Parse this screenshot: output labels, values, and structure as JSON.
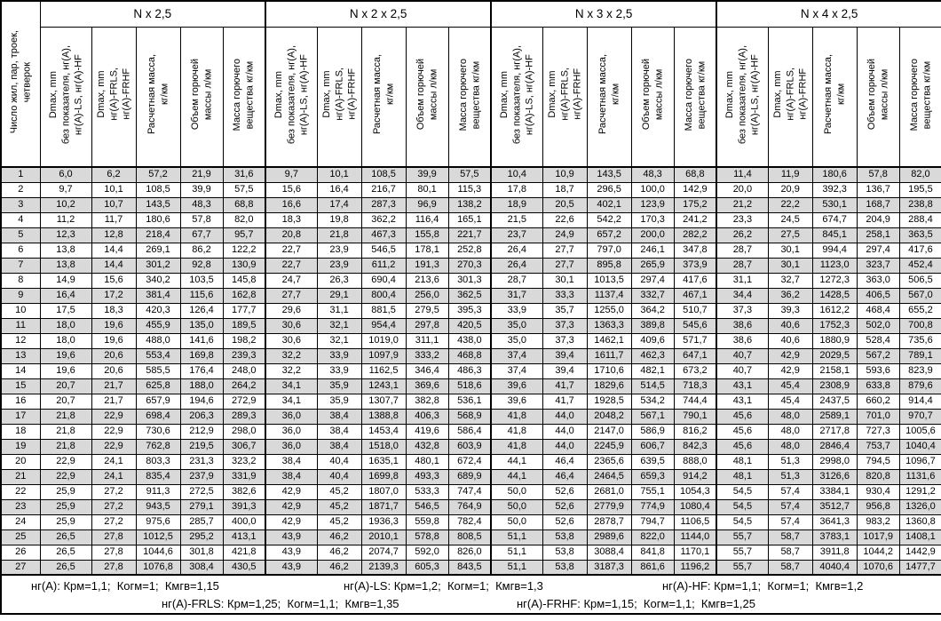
{
  "corner_header": "Число жил, пар, троек,\nчетверок",
  "groups": [
    {
      "title": "N x 2,5"
    },
    {
      "title": "N x 2 x 2,5"
    },
    {
      "title": "N x 3 x 2,5"
    },
    {
      "title": "N x 4 x 2,5"
    }
  ],
  "column_headers": [
    {
      "id": "dmax-base",
      "lines": [
        "Dmax, mm",
        "без показателя, нг(A),",
        "нг(A)-LS, нг(A)-HF"
      ]
    },
    {
      "id": "dmax-fr",
      "lines": [
        "Dmax, mm",
        "нг(A)-FRLS,",
        "нг(A)-FRHF"
      ]
    },
    {
      "id": "calc-mass",
      "lines": [
        "Расчетная масса,",
        "кг/км"
      ]
    },
    {
      "id": "combustible-volume",
      "lines": [
        "Объем горючей",
        "массы л/км"
      ]
    },
    {
      "id": "combustible-mass",
      "lines": [
        "Масса горючего",
        "вещества кг/км"
      ]
    }
  ],
  "colors": {
    "stripe": "#d9d9d9",
    "border": "#000000",
    "background": "#ffffff"
  },
  "rows": [
    {
      "num": "1",
      "cells": [
        "6,0",
        "6,2",
        "57,2",
        "21,9",
        "31,6",
        "9,7",
        "10,1",
        "108,5",
        "39,9",
        "57,5",
        "10,4",
        "10,9",
        "143,5",
        "48,3",
        "68,8",
        "11,4",
        "11,9",
        "180,6",
        "57,8",
        "82,0"
      ]
    },
    {
      "num": "2",
      "cells": [
        "9,7",
        "10,1",
        "108,5",
        "39,9",
        "57,5",
        "15,6",
        "16,4",
        "216,7",
        "80,1",
        "115,3",
        "17,8",
        "18,7",
        "296,5",
        "100,0",
        "142,9",
        "20,0",
        "20,9",
        "392,3",
        "136,7",
        "195,5"
      ]
    },
    {
      "num": "3",
      "cells": [
        "10,2",
        "10,7",
        "143,5",
        "48,3",
        "68,8",
        "16,6",
        "17,4",
        "287,3",
        "96,9",
        "138,2",
        "18,9",
        "20,5",
        "402,1",
        "123,9",
        "175,2",
        "21,2",
        "22,2",
        "530,1",
        "168,7",
        "238,8"
      ]
    },
    {
      "num": "4",
      "cells": [
        "11,2",
        "11,7",
        "180,6",
        "57,8",
        "82,0",
        "18,3",
        "19,8",
        "362,2",
        "116,4",
        "165,1",
        "21,5",
        "22,6",
        "542,2",
        "170,3",
        "241,2",
        "23,3",
        "24,5",
        "674,7",
        "204,9",
        "288,4"
      ]
    },
    {
      "num": "5",
      "cells": [
        "12,3",
        "12,8",
        "218,4",
        "67,7",
        "95,7",
        "20,8",
        "21,8",
        "467,3",
        "155,8",
        "221,7",
        "23,7",
        "24,9",
        "657,2",
        "200,0",
        "282,2",
        "26,2",
        "27,5",
        "845,1",
        "258,1",
        "363,5"
      ]
    },
    {
      "num": "6",
      "cells": [
        "13,8",
        "14,4",
        "269,1",
        "86,2",
        "122,2",
        "22,7",
        "23,9",
        "546,5",
        "178,1",
        "252,8",
        "26,4",
        "27,7",
        "797,0",
        "246,1",
        "347,8",
        "28,7",
        "30,1",
        "994,4",
        "297,4",
        "417,6"
      ]
    },
    {
      "num": "7",
      "cells": [
        "13,8",
        "14,4",
        "301,2",
        "92,8",
        "130,9",
        "22,7",
        "23,9",
        "611,2",
        "191,3",
        "270,3",
        "26,4",
        "27,7",
        "895,8",
        "265,9",
        "373,9",
        "28,7",
        "30,1",
        "1123,0",
        "323,7",
        "452,4"
      ]
    },
    {
      "num": "8",
      "cells": [
        "14,9",
        "15,6",
        "340,2",
        "103,5",
        "145,8",
        "24,7",
        "26,3",
        "690,4",
        "213,6",
        "301,3",
        "28,7",
        "30,1",
        "1013,5",
        "297,4",
        "417,6",
        "31,1",
        "32,7",
        "1272,3",
        "363,0",
        "506,5"
      ]
    },
    {
      "num": "9",
      "cells": [
        "16,4",
        "17,2",
        "381,4",
        "115,6",
        "162,8",
        "27,7",
        "29,1",
        "800,4",
        "256,0",
        "362,5",
        "31,7",
        "33,3",
        "1137,4",
        "332,7",
        "467,1",
        "34,4",
        "36,2",
        "1428,5",
        "406,5",
        "567,0"
      ]
    },
    {
      "num": "10",
      "cells": [
        "17,5",
        "18,3",
        "420,3",
        "126,4",
        "177,7",
        "29,6",
        "31,1",
        "881,5",
        "279,5",
        "395,3",
        "33,9",
        "35,7",
        "1255,0",
        "364,2",
        "510,7",
        "37,3",
        "39,3",
        "1612,2",
        "468,4",
        "655,2"
      ]
    },
    {
      "num": "11",
      "cells": [
        "18,0",
        "19,6",
        "455,9",
        "135,0",
        "189,5",
        "30,6",
        "32,1",
        "954,4",
        "297,8",
        "420,5",
        "35,0",
        "37,3",
        "1363,3",
        "389,8",
        "545,6",
        "38,6",
        "40,6",
        "1752,3",
        "502,0",
        "700,8"
      ]
    },
    {
      "num": "12",
      "cells": [
        "18,0",
        "19,6",
        "488,0",
        "141,6",
        "198,2",
        "30,6",
        "32,1",
        "1019,0",
        "311,1",
        "438,0",
        "35,0",
        "37,3",
        "1462,1",
        "409,6",
        "571,7",
        "38,6",
        "40,6",
        "1880,9",
        "528,4",
        "735,6"
      ]
    },
    {
      "num": "13",
      "cells": [
        "19,6",
        "20,6",
        "553,4",
        "169,8",
        "239,3",
        "32,2",
        "33,9",
        "1097,9",
        "333,2",
        "468,8",
        "37,4",
        "39,4",
        "1611,7",
        "462,3",
        "647,1",
        "40,7",
        "42,9",
        "2029,5",
        "567,2",
        "789,1"
      ]
    },
    {
      "num": "14",
      "cells": [
        "19,6",
        "20,6",
        "585,5",
        "176,4",
        "248,0",
        "32,2",
        "33,9",
        "1162,5",
        "346,4",
        "486,3",
        "37,4",
        "39,4",
        "1710,6",
        "482,1",
        "673,2",
        "40,7",
        "42,9",
        "2158,1",
        "593,6",
        "823,9"
      ]
    },
    {
      "num": "15",
      "cells": [
        "20,7",
        "21,7",
        "625,8",
        "188,0",
        "264,2",
        "34,1",
        "35,9",
        "1243,1",
        "369,6",
        "518,6",
        "39,6",
        "41,7",
        "1829,6",
        "514,5",
        "718,3",
        "43,1",
        "45,4",
        "2308,9",
        "633,8",
        "879,6"
      ]
    },
    {
      "num": "16",
      "cells": [
        "20,7",
        "21,7",
        "657,9",
        "194,6",
        "272,9",
        "34,1",
        "35,9",
        "1307,7",
        "382,8",
        "536,1",
        "39,6",
        "41,7",
        "1928,5",
        "534,2",
        "744,4",
        "43,1",
        "45,4",
        "2437,5",
        "660,2",
        "914,4"
      ]
    },
    {
      "num": "17",
      "cells": [
        "21,8",
        "22,9",
        "698,4",
        "206,3",
        "289,3",
        "36,0",
        "38,4",
        "1388,8",
        "406,3",
        "568,9",
        "41,8",
        "44,0",
        "2048,2",
        "567,1",
        "790,1",
        "45,6",
        "48,0",
        "2589,1",
        "701,0",
        "970,7"
      ]
    },
    {
      "num": "18",
      "cells": [
        "21,8",
        "22,9",
        "730,6",
        "212,9",
        "298,0",
        "36,0",
        "38,4",
        "1453,4",
        "419,6",
        "586,4",
        "41,8",
        "44,0",
        "2147,0",
        "586,9",
        "816,2",
        "45,6",
        "48,0",
        "2717,8",
        "727,3",
        "1005,6"
      ]
    },
    {
      "num": "19",
      "cells": [
        "21,8",
        "22,9",
        "762,8",
        "219,5",
        "306,7",
        "36,0",
        "38,4",
        "1518,0",
        "432,8",
        "603,9",
        "41,8",
        "44,0",
        "2245,9",
        "606,7",
        "842,3",
        "45,6",
        "48,0",
        "2846,4",
        "753,7",
        "1040,4"
      ]
    },
    {
      "num": "20",
      "cells": [
        "22,9",
        "24,1",
        "803,3",
        "231,3",
        "323,2",
        "38,4",
        "40,4",
        "1635,1",
        "480,1",
        "672,4",
        "44,1",
        "46,4",
        "2365,6",
        "639,5",
        "888,0",
        "48,1",
        "51,3",
        "2998,0",
        "794,5",
        "1096,7"
      ]
    },
    {
      "num": "21",
      "cells": [
        "22,9",
        "24,1",
        "835,4",
        "237,9",
        "331,9",
        "38,4",
        "40,4",
        "1699,8",
        "493,3",
        "689,9",
        "44,1",
        "46,4",
        "2464,5",
        "659,3",
        "914,2",
        "48,1",
        "51,3",
        "3126,6",
        "820,8",
        "1131,6"
      ]
    },
    {
      "num": "22",
      "cells": [
        "25,9",
        "27,2",
        "911,3",
        "272,5",
        "382,6",
        "42,9",
        "45,2",
        "1807,0",
        "533,3",
        "747,4",
        "50,0",
        "52,6",
        "2681,0",
        "755,1",
        "1054,3",
        "54,5",
        "57,4",
        "3384,1",
        "930,4",
        "1291,2"
      ]
    },
    {
      "num": "23",
      "cells": [
        "25,9",
        "27,2",
        "943,5",
        "279,1",
        "391,3",
        "42,9",
        "45,2",
        "1871,7",
        "546,5",
        "764,9",
        "50,0",
        "52,6",
        "2779,9",
        "774,9",
        "1080,4",
        "54,5",
        "57,4",
        "3512,7",
        "956,8",
        "1326,0"
      ]
    },
    {
      "num": "24",
      "cells": [
        "25,9",
        "27,2",
        "975,6",
        "285,7",
        "400,0",
        "42,9",
        "45,2",
        "1936,3",
        "559,8",
        "782,4",
        "50,0",
        "52,6",
        "2878,7",
        "794,7",
        "1106,5",
        "54,5",
        "57,4",
        "3641,3",
        "983,2",
        "1360,8"
      ]
    },
    {
      "num": "25",
      "cells": [
        "26,5",
        "27,8",
        "1012,5",
        "295,2",
        "413,1",
        "43,9",
        "46,2",
        "2010,1",
        "578,8",
        "808,5",
        "51,1",
        "53,8",
        "2989,6",
        "822,0",
        "1144,0",
        "55,7",
        "58,7",
        "3783,1",
        "1017,9",
        "1408,1"
      ]
    },
    {
      "num": "26",
      "cells": [
        "26,5",
        "27,8",
        "1044,6",
        "301,8",
        "421,8",
        "43,9",
        "46,2",
        "2074,7",
        "592,0",
        "826,0",
        "51,1",
        "53,8",
        "3088,4",
        "841,8",
        "1170,1",
        "55,7",
        "58,7",
        "3911,8",
        "1044,2",
        "1442,9"
      ]
    },
    {
      "num": "27",
      "cells": [
        "26,5",
        "27,8",
        "1076,8",
        "308,4",
        "430,5",
        "43,9",
        "46,2",
        "2139,3",
        "605,3",
        "843,5",
        "51,1",
        "53,8",
        "3187,3",
        "861,6",
        "1196,2",
        "55,7",
        "58,7",
        "4040,4",
        "1070,6",
        "1477,7"
      ]
    }
  ],
  "footnotes": [
    "нг(A): Крм=1,1;  Когм=1;  Кмгв=1,15",
    "нг(A)-LS: Крм=1,2;  Когм=1;  Кмгв=1,3",
    "нг(A)-HF: Крм=1,1;  Когм=1;  Кмгв=1,2",
    "нг(A)-FRLS: Крм=1,25;  Когм=1,1;  Кмгв=1,35",
    "нг(A)-FRHF: Крм=1,15;  Когм=1,1;  Кмгв=1,25"
  ]
}
